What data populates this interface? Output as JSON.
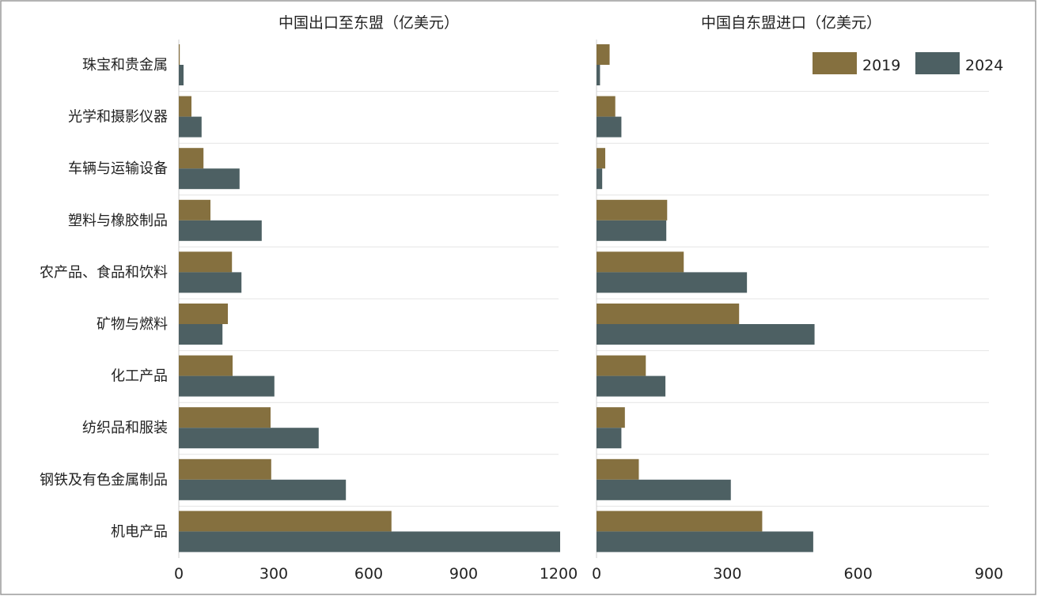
{
  "chart_data": [
    {
      "type": "bar",
      "orientation": "horizontal",
      "title": "中国出口至东盟（亿美元）",
      "categories": [
        "珠宝和贵金属",
        "光学和摄影仪器",
        "车辆与运输设备",
        "塑料与橡胶制品",
        "农产品、食品和饮料",
        "矿物与燃料",
        "化工产品",
        "纺织品和服装",
        "钢铁及有色金属制品",
        "机电产品"
      ],
      "series": [
        {
          "name": "2019",
          "color": "#85703f",
          "values": [
            3,
            40,
            78,
            100,
            168,
            155,
            170,
            290,
            292,
            672
          ]
        },
        {
          "name": "2024",
          "color": "#4d6063",
          "values": [
            15,
            72,
            192,
            262,
            198,
            138,
            302,
            442,
            528,
            1205
          ]
        }
      ],
      "xlim": [
        0,
        1200
      ],
      "xticks": [
        "0",
        "300",
        "600",
        "900",
        "1200"
      ],
      "grid": true
    },
    {
      "type": "bar",
      "orientation": "horizontal",
      "title": "中国自东盟进口（亿美元）",
      "categories": [
        "珠宝和贵金属",
        "光学和摄影仪器",
        "车辆与运输设备",
        "塑料与橡胶制品",
        "农产品、食品和饮料",
        "矿物与燃料",
        "化工产品",
        "纺织品和服装",
        "钢铁及有色金属制品",
        "机电产品"
      ],
      "series": [
        {
          "name": "2019",
          "color": "#85703f",
          "values": [
            30,
            43,
            20,
            162,
            200,
            327,
            113,
            65,
            97,
            380
          ]
        },
        {
          "name": "2024",
          "color": "#4d6063",
          "values": [
            8,
            57,
            13,
            160,
            345,
            500,
            158,
            57,
            308,
            497
          ]
        }
      ],
      "xlim": [
        0,
        900
      ],
      "xticks": [
        "0",
        "300",
        "600",
        "900"
      ],
      "grid": true,
      "legend": "top-right"
    }
  ],
  "legend": {
    "items": [
      {
        "label": "2019",
        "color": "#85703f"
      },
      {
        "label": "2024",
        "color": "#4d6063"
      }
    ]
  }
}
